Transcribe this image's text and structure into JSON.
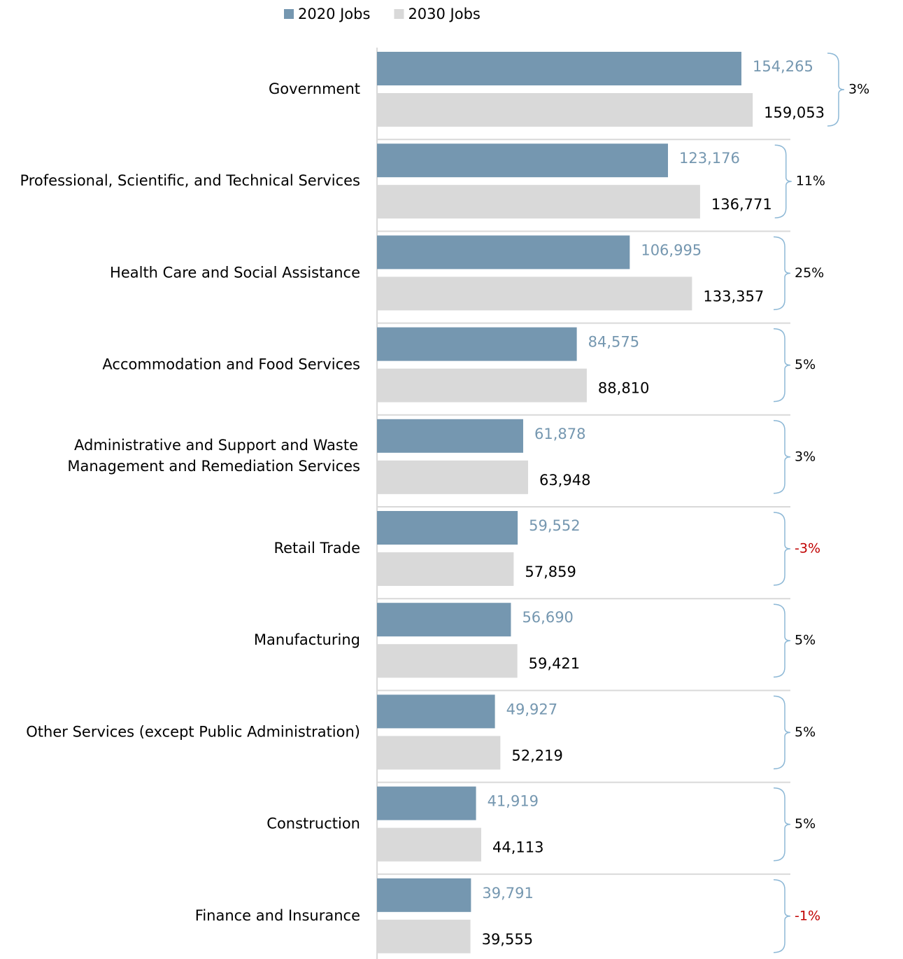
{
  "chart_data": {
    "type": "bar",
    "orientation": "horizontal",
    "categories": [
      "Government",
      "Professional, Scientific, and Technical Services",
      "Health Care and Social Assistance",
      "Accommodation and Food Services",
      "Administrative and Support and Waste Management and Remediation Services",
      "Retail Trade",
      "Manufacturing",
      "Other Services (except Public Administration)",
      "Construction",
      "Finance and Insurance"
    ],
    "series": [
      {
        "name": "2020 Jobs",
        "color": "#7597b0",
        "label_color": "#7597b0",
        "values": [
          154265,
          123176,
          106995,
          84575,
          61878,
          59552,
          56690,
          49927,
          41919,
          39791
        ],
        "value_labels": [
          "154,265",
          "123,176",
          "106,995",
          "84,575",
          "61,878",
          "59,552",
          "56,690",
          "49,927",
          "41,919",
          "39,791"
        ]
      },
      {
        "name": "2030 Jobs",
        "color": "#d9d9d9",
        "label_color": "#000000",
        "values": [
          159053,
          136771,
          133357,
          88810,
          63948,
          57859,
          59421,
          52219,
          44113,
          39555
        ],
        "value_labels": [
          "159,053",
          "136,771",
          "133,357",
          "88,810",
          "63,948",
          "57,859",
          "59,421",
          "52,219",
          "44,113",
          "39,555"
        ]
      }
    ],
    "changes": [
      3,
      11,
      25,
      5,
      3,
      -3,
      5,
      5,
      5,
      -1
    ],
    "change_labels": [
      "3%",
      "11%",
      "25%",
      "5%",
      "3%",
      "-3%",
      "5%",
      "5%",
      "5%",
      "-1%"
    ],
    "change_color": "#000000",
    "negative_change_color": "#c00000",
    "bracket_color": "#8db8d6",
    "xlim": [
      0,
      175000
    ],
    "legend": "top"
  }
}
